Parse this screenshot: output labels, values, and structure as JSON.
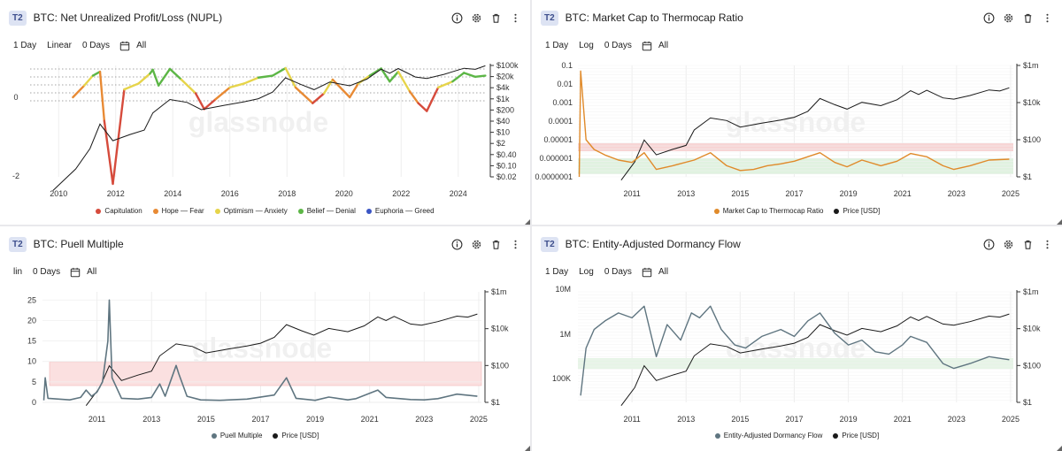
{
  "colors": {
    "price": "#1a1a1a",
    "orange": "#e08a2a",
    "slate": "#5f7580",
    "red": "#d64b3c",
    "hope": "#e88a34",
    "optimism": "#e6d44a",
    "belief": "#5cb646",
    "euphoria": "#3a55c4"
  },
  "watermark": "glassnode",
  "panels": [
    {
      "badge": "T2",
      "title": "BTC: Net Unrealized Profit/Loss (NUPL)",
      "toolbar": [
        "1 Day",
        "Linear",
        "0 Days"
      ],
      "range": "All",
      "chart_data": {
        "type": "line",
        "title": "BTC: Net Unrealized Profit/Loss (NUPL)",
        "x_ticks": [
          "2010",
          "2012",
          "2014",
          "2016",
          "2018",
          "2020",
          "2022",
          "2024"
        ],
        "y_left_ticks": [
          "0",
          "-2"
        ],
        "y_right_ticks": [
          "$100k",
          "$20k",
          "$4k",
          "$1k",
          "$200",
          "$40",
          "$10",
          "$2",
          "$0.40",
          "$0.10",
          "$0.02"
        ],
        "series": [
          {
            "name": "NUPL",
            "x": [
              2010.5,
              2010.9,
              2011.2,
              2011.45,
              2011.6,
              2011.9,
              2012.3,
              2012.8,
              2013.2,
              2013.3,
              2013.5,
              2013.9,
              2014.3,
              2014.8,
              2015.1,
              2015.5,
              2016.0,
              2016.5,
              2017.0,
              2017.5,
              2017.95,
              2018.3,
              2018.9,
              2019.3,
              2019.6,
              2020.2,
              2020.5,
              2020.9,
              2021.3,
              2021.6,
              2021.9,
              2022.3,
              2022.6,
              2022.9,
              2023.3,
              2023.8,
              2024.2,
              2024.6,
              2024.95
            ],
            "values": [
              0.0,
              0.3,
              0.55,
              0.65,
              -0.6,
              -2.2,
              0.2,
              0.35,
              0.6,
              0.7,
              0.3,
              0.72,
              0.45,
              0.1,
              -0.3,
              -0.05,
              0.25,
              0.35,
              0.5,
              0.55,
              0.74,
              0.25,
              -0.15,
              0.1,
              0.45,
              0.0,
              0.35,
              0.55,
              0.73,
              0.4,
              0.65,
              0.15,
              -0.15,
              -0.35,
              0.25,
              0.4,
              0.62,
              0.52,
              0.55
            ]
          },
          {
            "name": "Price [USD]",
            "x": [
              2009.8,
              2010.6,
              2011.1,
              2011.45,
              2011.9,
              2012.5,
              2013.0,
              2013.3,
              2013.9,
              2014.5,
              2015.0,
              2015.8,
              2016.5,
              2017.0,
              2017.5,
              2017.95,
              2018.5,
              2018.95,
              2019.5,
              2020.2,
              2020.8,
              2021.3,
              2021.6,
              2021.9,
              2022.5,
              2022.9,
              2023.5,
              2024.2,
              2024.6,
              2024.95
            ],
            "values": [
              0.003,
              0.06,
              1,
              30,
              3,
              7,
              13,
              140,
              900,
              600,
              220,
              400,
              650,
              1000,
              2500,
              18000,
              7000,
              3500,
              10000,
              6000,
              15000,
              60000,
              34000,
              65000,
              20000,
              16500,
              29000,
              68000,
              58000,
              95000
            ]
          }
        ],
        "legend": [
          "Capitulation",
          "Hope — Fear",
          "Optimism — Anxiety",
          "Belief — Denial",
          "Euphoria — Greed"
        ]
      }
    },
    {
      "badge": "T2",
      "title": "BTC: Market Cap to Thermocap Ratio",
      "toolbar": [
        "1 Day",
        "Log",
        "0 Days"
      ],
      "range": "All",
      "chart_data": {
        "type": "line",
        "title": "BTC: Market Cap to Thermocap Ratio",
        "x_ticks": [
          "2011",
          "2013",
          "2015",
          "2017",
          "2019",
          "2021",
          "2023",
          "2025"
        ],
        "y_left_ticks": [
          "0.1",
          "0.01",
          "0.001",
          "0.0001",
          "0.00001",
          "0.000001",
          "0.0000001"
        ],
        "y_right_ticks": [
          "$1m",
          "$10k",
          "$100",
          "$1"
        ],
        "ylim": [
          1e-07,
          0.1
        ],
        "series": [
          {
            "name": "Market Cap to Thermocap Ratio",
            "x": [
              2009.05,
              2009.1,
              2009.3,
              2009.6,
              2010.0,
              2010.5,
              2011.0,
              2011.45,
              2011.9,
              2012.5,
              2013.3,
              2013.9,
              2014.5,
              2015.0,
              2015.5,
              2016.0,
              2016.5,
              2017.0,
              2017.95,
              2018.5,
              2018.95,
              2019.5,
              2020.2,
              2020.8,
              2021.3,
              2021.9,
              2022.5,
              2022.9,
              2023.5,
              2024.2,
              2024.95
            ],
            "values": [
              1e-07,
              0.05,
              1e-05,
              3e-06,
              1.5e-06,
              8e-07,
              6e-07,
              2e-06,
              2.5e-07,
              4e-07,
              8e-07,
              2e-06,
              4e-07,
              2.2e-07,
              2.5e-07,
              4e-07,
              5e-07,
              7e-07,
              2e-06,
              6e-07,
              3.5e-07,
              8e-07,
              4e-07,
              7e-07,
              1.8e-06,
              1.2e-06,
              4e-07,
              2.5e-07,
              4e-07,
              8e-07,
              9e-07
            ]
          },
          {
            "name": "Price [USD]",
            "x": [
              2010.6,
              2011.1,
              2011.45,
              2011.9,
              2012.5,
              2013.0,
              2013.3,
              2013.9,
              2014.5,
              2015.0,
              2015.8,
              2016.5,
              2017.0,
              2017.5,
              2017.95,
              2018.5,
              2018.95,
              2019.5,
              2020.2,
              2020.8,
              2021.3,
              2021.6,
              2021.9,
              2022.5,
              2022.9,
              2023.5,
              2024.2,
              2024.6,
              2024.95
            ],
            "values": [
              0.06,
              1,
              30,
              3,
              7,
              13,
              140,
              900,
              600,
              220,
              400,
              650,
              1000,
              2500,
              18000,
              7000,
              3500,
              10000,
              6000,
              15000,
              60000,
              34000,
              65000,
              20000,
              16500,
              29000,
              68000,
              58000,
              95000
            ]
          }
        ],
        "legend": [
          "Market Cap to Thermocap Ratio",
          "Price [USD]"
        ]
      }
    },
    {
      "badge": "T2",
      "title": "BTC: Puell Multiple",
      "toolbar": [
        "lin",
        "0 Days"
      ],
      "range": "All",
      "chart_data": {
        "type": "line",
        "title": "BTC: Puell Multiple",
        "x_ticks": [
          "2011",
          "2013",
          "2015",
          "2017",
          "2019",
          "2021",
          "2023",
          "2025"
        ],
        "y_left_ticks": [
          "25",
          "20",
          "15",
          "10",
          "5",
          "0"
        ],
        "y_right_ticks": [
          "$1m",
          "$10k",
          "$100",
          "$1"
        ],
        "ylim": [
          0,
          27
        ],
        "series": [
          {
            "name": "Puell Multiple",
            "x": [
              2009.05,
              2009.1,
              2009.2,
              2009.6,
              2010.0,
              2010.4,
              2010.6,
              2010.8,
              2011.0,
              2011.2,
              2011.4,
              2011.45,
              2011.55,
              2011.9,
              2012.5,
              2013.0,
              2013.3,
              2013.5,
              2013.9,
              2014.0,
              2014.3,
              2014.8,
              2015.5,
              2016.5,
              2017.5,
              2017.95,
              2018.3,
              2019.0,
              2019.5,
              2020.2,
              2020.5,
              2021.3,
              2021.6,
              2022.5,
              2023.0,
              2023.5,
              2024.2,
              2024.95
            ],
            "values": [
              0.5,
              6.0,
              1.0,
              0.8,
              0.6,
              1.2,
              3.0,
              1.5,
              2.5,
              5.0,
              15.0,
              25.0,
              6.0,
              1.0,
              0.8,
              1.2,
              4.5,
              1.5,
              9.0,
              7.0,
              1.5,
              0.6,
              0.5,
              0.8,
              1.8,
              6.0,
              1.0,
              0.5,
              1.3,
              0.6,
              0.9,
              3.0,
              1.2,
              0.7,
              0.6,
              0.9,
              2.0,
              1.5
            ]
          },
          {
            "name": "Price [USD]",
            "x": [
              2010.6,
              2011.1,
              2011.45,
              2011.9,
              2012.5,
              2013.0,
              2013.3,
              2013.9,
              2014.5,
              2015.0,
              2015.8,
              2016.5,
              2017.0,
              2017.5,
              2017.95,
              2018.5,
              2018.95,
              2019.5,
              2020.2,
              2020.8,
              2021.3,
              2021.6,
              2021.9,
              2022.5,
              2022.9,
              2023.5,
              2024.2,
              2024.6,
              2024.95
            ],
            "values": [
              0.06,
              1,
              30,
              3,
              7,
              13,
              140,
              900,
              600,
              220,
              400,
              650,
              1000,
              2500,
              18000,
              7000,
              3500,
              10000,
              6000,
              15000,
              60000,
              34000,
              65000,
              20000,
              16500,
              29000,
              68000,
              58000,
              95000
            ]
          }
        ],
        "legend": [
          "Puell Multiple",
          "Price [USD]"
        ]
      }
    },
    {
      "badge": "T2",
      "title": "BTC: Entity-Adjusted Dormancy Flow",
      "toolbar": [
        "1 Day",
        "Log",
        "0 Days"
      ],
      "range": "All",
      "chart_data": {
        "type": "line",
        "title": "BTC: Entity-Adjusted Dormancy Flow",
        "x_ticks": [
          "2011",
          "2013",
          "2015",
          "2017",
          "2019",
          "2021",
          "2023",
          "2025"
        ],
        "y_left_ticks": [
          "10M",
          "1M",
          "100K"
        ],
        "y_right_ticks": [
          "$1m",
          "$10k",
          "$100",
          "$1"
        ],
        "series": [
          {
            "name": "Entity-Adjusted Dormancy Flow",
            "x": [
              2009.1,
              2009.3,
              2009.6,
              2010.0,
              2010.5,
              2011.0,
              2011.45,
              2011.9,
              2012.3,
              2012.8,
              2013.2,
              2013.5,
              2013.9,
              2014.3,
              2014.8,
              2015.2,
              2015.8,
              2016.5,
              2017.0,
              2017.5,
              2017.95,
              2018.5,
              2019.0,
              2019.5,
              2020.0,
              2020.5,
              2021.0,
              2021.3,
              2021.9,
              2022.5,
              2022.9,
              2023.5,
              2024.2,
              2024.95
            ],
            "values": [
              30000,
              500000,
              1500000,
              2500000,
              4000000,
              3000000,
              6000000,
              300000,
              2000000,
              800000,
              4000000,
              3000000,
              6000000,
              1500000,
              600000,
              500000,
              1000000,
              1500000,
              1000000,
              2500000,
              4000000,
              1200000,
              600000,
              800000,
              400000,
              350000,
              600000,
              1000000,
              700000,
              200000,
              150000,
              200000,
              300000,
              250000
            ]
          },
          {
            "name": "Price [USD]",
            "x": [
              2010.6,
              2011.1,
              2011.45,
              2011.9,
              2012.5,
              2013.0,
              2013.3,
              2013.9,
              2014.5,
              2015.0,
              2015.8,
              2016.5,
              2017.0,
              2017.5,
              2017.95,
              2018.5,
              2018.95,
              2019.5,
              2020.2,
              2020.8,
              2021.3,
              2021.6,
              2021.9,
              2022.5,
              2022.9,
              2023.5,
              2024.2,
              2024.6,
              2024.95
            ],
            "values": [
              0.06,
              1,
              30,
              3,
              7,
              13,
              140,
              900,
              600,
              220,
              400,
              650,
              1000,
              2500,
              18000,
              7000,
              3500,
              10000,
              6000,
              15000,
              60000,
              34000,
              65000,
              20000,
              16500,
              29000,
              68000,
              58000,
              95000
            ]
          }
        ],
        "legend": [
          "Entity-Adjusted Dormancy Flow",
          "Price [USD]"
        ]
      }
    }
  ]
}
